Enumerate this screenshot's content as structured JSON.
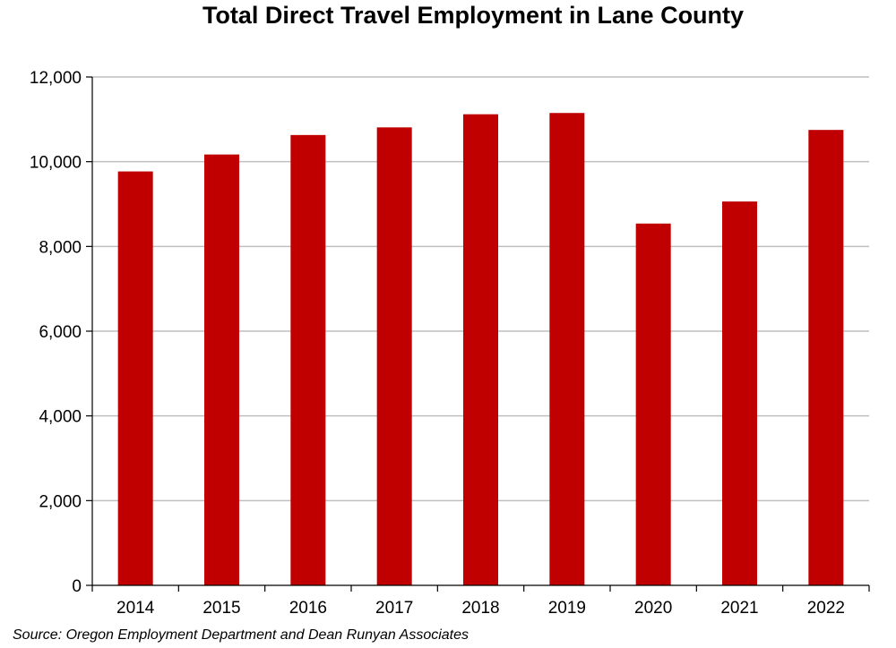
{
  "chart_data": {
    "type": "bar",
    "title": "Total Direct Travel Employment in Lane County",
    "categories": [
      "2014",
      "2015",
      "2016",
      "2017",
      "2018",
      "2019",
      "2020",
      "2021",
      "2022"
    ],
    "values": [
      9770,
      10170,
      10630,
      10810,
      11120,
      11150,
      8540,
      9060,
      10750
    ],
    "ylim": [
      0,
      12000
    ],
    "yticks": [
      0,
      2000,
      4000,
      6000,
      8000,
      10000,
      12000
    ],
    "ytick_labels": [
      "0",
      "2,000",
      "4,000",
      "6,000",
      "8,000",
      "10,000",
      "12,000"
    ],
    "xlabel": "",
    "ylabel": "",
    "grid": true,
    "legend": "none",
    "bar_color": "#c00000"
  },
  "source": "Source: Oregon Employment Department and Dean Runyan Associates"
}
